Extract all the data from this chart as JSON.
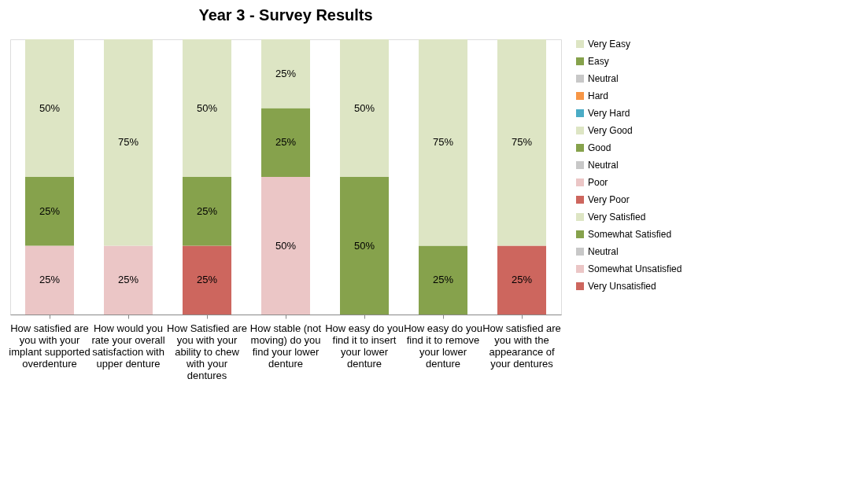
{
  "chart_data": {
    "type": "bar",
    "title": "Year 3 - Survey Results",
    "stacked": true,
    "legend": "right",
    "categories": [
      "How satisfied are you with your implant supported overdenture",
      "How would you rate your overall satisfaction with upper denture",
      "How Satisfied are you with your ability to chew with your dentures",
      "How stable (not moving) do you find your lower denture",
      "How easy do you find it to insert your lower denture",
      "How easy do you find it to remove your lower denture",
      "How satisfied are you with the appearance of your dentures"
    ],
    "series": [
      {
        "name": "Very Unsatisfied",
        "color": "#cd665e",
        "values": [
          null,
          null,
          25,
          null,
          null,
          null,
          25
        ],
        "value_labels": [
          null,
          null,
          "25%",
          null,
          null,
          null,
          "25%"
        ]
      },
      {
        "name": "Somewhat Unsatisfied",
        "color": "#ebc6c6",
        "values": [
          25,
          null,
          null,
          null,
          null,
          null,
          null
        ],
        "value_labels": [
          "25%",
          null,
          null,
          null,
          null,
          null,
          null
        ]
      },
      {
        "name": "Neutral",
        "color": "#c8c8c8",
        "values": [
          null,
          null,
          null,
          null,
          null,
          null,
          null
        ],
        "value_labels": [
          null,
          null,
          null,
          null,
          null,
          null,
          null
        ]
      },
      {
        "name": "Somewhat Satisfied",
        "color": "#86a24c",
        "values": [
          25,
          null,
          25,
          null,
          null,
          null,
          null
        ],
        "value_labels": [
          "25%",
          null,
          "25%",
          null,
          null,
          null,
          null
        ]
      },
      {
        "name": "Very Satisfied",
        "color": "#dde5c4",
        "values": [
          50,
          null,
          50,
          null,
          null,
          null,
          75
        ],
        "value_labels": [
          "50%",
          null,
          "50%",
          null,
          null,
          null,
          "75%"
        ]
      },
      {
        "name": "Very Poor",
        "color": "#cd665e",
        "values": [
          null,
          null,
          null,
          null,
          null,
          null,
          null
        ],
        "value_labels": [
          null,
          null,
          null,
          null,
          null,
          null,
          null
        ]
      },
      {
        "name": "Poor",
        "color": "#ebc6c6",
        "values": [
          null,
          25,
          null,
          50,
          null,
          null,
          null
        ],
        "value_labels": [
          null,
          "25%",
          null,
          "50%",
          null,
          null,
          null
        ]
      },
      {
        "name": "Neutral",
        "color": "#c8c8c8",
        "values": [
          null,
          null,
          null,
          null,
          null,
          null,
          null
        ],
        "value_labels": [
          null,
          null,
          null,
          null,
          null,
          null,
          null
        ]
      },
      {
        "name": "Good",
        "color": "#86a24c",
        "values": [
          null,
          null,
          null,
          25,
          null,
          null,
          null
        ],
        "value_labels": [
          null,
          null,
          null,
          "25%",
          null,
          null,
          null
        ]
      },
      {
        "name": "Very Good",
        "color": "#dde5c4",
        "values": [
          null,
          75,
          null,
          25,
          null,
          null,
          null
        ],
        "value_labels": [
          null,
          "75%",
          null,
          "25%",
          null,
          null,
          null
        ]
      },
      {
        "name": "Very Hard",
        "color": "#4bacc6",
        "values": [
          null,
          null,
          null,
          null,
          null,
          null,
          null
        ],
        "value_labels": [
          null,
          null,
          null,
          null,
          null,
          null,
          null
        ]
      },
      {
        "name": "Hard",
        "color": "#f79646",
        "values": [
          null,
          null,
          null,
          null,
          null,
          null,
          null
        ],
        "value_labels": [
          null,
          null,
          null,
          null,
          null,
          null,
          null
        ]
      },
      {
        "name": "Neutral",
        "color": "#c8c8c8",
        "values": [
          null,
          null,
          null,
          null,
          null,
          null,
          null
        ],
        "value_labels": [
          null,
          null,
          null,
          null,
          null,
          null,
          null
        ]
      },
      {
        "name": "Easy",
        "color": "#86a24c",
        "values": [
          null,
          null,
          null,
          null,
          50,
          25,
          null
        ],
        "value_labels": [
          null,
          null,
          null,
          null,
          "50%",
          "25%",
          null
        ]
      },
      {
        "name": "Very Easy",
        "color": "#dde5c4",
        "values": [
          null,
          null,
          null,
          null,
          50,
          75,
          null
        ],
        "value_labels": [
          null,
          null,
          null,
          null,
          "50%",
          "75%",
          null
        ]
      }
    ]
  }
}
